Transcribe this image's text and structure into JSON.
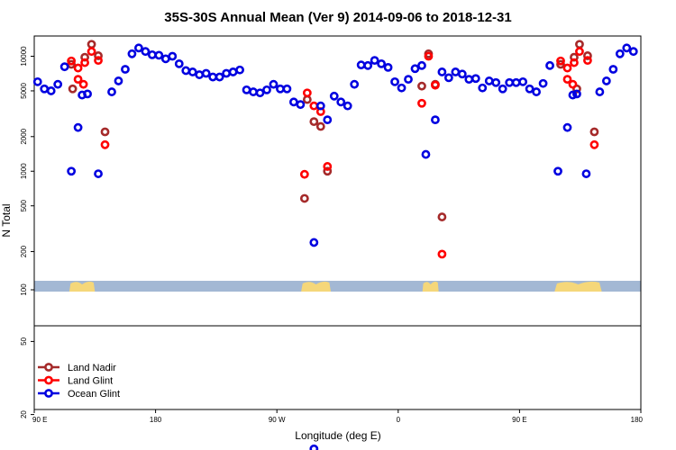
{
  "chart_data": {
    "type": "scatter",
    "title": "35S-30S Annual Mean (Ver 9)   2014-09-06 to 2018-12-31",
    "xlabel": "Longitude (deg E)",
    "ylabel": "N Total",
    "x_ticks": [
      {
        "value": 90,
        "label": "90 E"
      },
      {
        "value": 180,
        "label": "180"
      },
      {
        "value": 270,
        "label": "90 W"
      },
      {
        "value": 360,
        "label": "0"
      },
      {
        "value": 450,
        "label": "90 E"
      },
      {
        "value": 540,
        "label": "180"
      }
    ],
    "xlim": [
      90,
      540
    ],
    "y_scale": "log",
    "upper_panel": {
      "ylim": [
        100,
        15000
      ],
      "y_ticks": [
        {
          "value": 200,
          "label": "200"
        },
        {
          "value": 500,
          "label": "500"
        },
        {
          "value": 1000,
          "label": "1000"
        },
        {
          "value": 2000,
          "label": "2000"
        },
        {
          "value": 5000,
          "label": "5000"
        },
        {
          "value": 10000,
          "label": "10000"
        }
      ]
    },
    "lower_panel": {
      "ylim": [
        10,
        100
      ],
      "y_ticks": [
        {
          "value": 20,
          "label": "20"
        },
        {
          "value": 50,
          "label": "50"
        },
        {
          "value": 100,
          "label": "100"
        }
      ]
    },
    "map_strip": {
      "ocean_color": "#a3b8d4",
      "land_color": "#f5d77a",
      "land_ranges": [
        [
          116,
          135
        ],
        [
          288,
          310
        ],
        [
          378,
          390
        ],
        [
          476,
          511
        ]
      ]
    },
    "legend_position": "bottom-left",
    "series": [
      {
        "name": "Land Nadir",
        "color": "#a52a2a",
        "points": [
          [
            117.5,
            8500
          ],
          [
            127.5,
            9800
          ],
          [
            132.5,
            12700
          ],
          [
            137.5,
            10100
          ],
          [
            142.5,
            2200
          ],
          [
            292.5,
            4200
          ],
          [
            297.5,
            2700
          ],
          [
            302.5,
            2450
          ],
          [
            307.5,
            1000
          ],
          [
            377.5,
            5500
          ],
          [
            382.5,
            10500
          ],
          [
            387.5,
            5700
          ],
          [
            392.5,
            400
          ],
          [
            480.5,
            8500
          ],
          [
            490.5,
            9800
          ],
          [
            494.5,
            12700
          ],
          [
            500.5,
            10100
          ],
          [
            505.5,
            2200
          ],
          [
            118.5,
            5200
          ],
          [
            290.5,
            580
          ],
          [
            492.5,
            5200
          ]
        ]
      },
      {
        "name": "Land Glint",
        "color": "#ff0000",
        "points": [
          [
            117.5,
            9100
          ],
          [
            122.5,
            7900
          ],
          [
            127.5,
            8800
          ],
          [
            132.5,
            11000
          ],
          [
            137.5,
            9200
          ],
          [
            142.5,
            1700
          ],
          [
            122.5,
            6300
          ],
          [
            126.5,
            5700
          ],
          [
            292.5,
            4800
          ],
          [
            297.5,
            3700
          ],
          [
            302.5,
            3300
          ],
          [
            307.5,
            1100
          ],
          [
            290.5,
            940
          ],
          [
            377.5,
            3900
          ],
          [
            382.5,
            10000
          ],
          [
            387.5,
            5600
          ],
          [
            392.5,
            190
          ],
          [
            480.5,
            9100
          ],
          [
            485.5,
            7900
          ],
          [
            490.5,
            8800
          ],
          [
            494.5,
            11000
          ],
          [
            500.5,
            9200
          ],
          [
            505.5,
            1700
          ],
          [
            485.5,
            6300
          ],
          [
            489.5,
            5700
          ]
        ]
      },
      {
        "name": "Ocean Glint",
        "color": "#0000e0",
        "points": [
          [
            92.5,
            6000
          ],
          [
            97.5,
            5200
          ],
          [
            102.5,
            5000
          ],
          [
            107.5,
            5700
          ],
          [
            112.5,
            8100
          ],
          [
            117.5,
            1000
          ],
          [
            122.5,
            2400
          ],
          [
            125.5,
            4600
          ],
          [
            129.5,
            4700
          ],
          [
            137.5,
            950
          ],
          [
            147.5,
            4900
          ],
          [
            152.5,
            6100
          ],
          [
            157.5,
            7700
          ],
          [
            162.5,
            10500
          ],
          [
            167.5,
            11800
          ],
          [
            172.5,
            11000
          ],
          [
            177.5,
            10300
          ],
          [
            182.5,
            10200
          ],
          [
            187.5,
            9500
          ],
          [
            192.5,
            10000
          ],
          [
            197.5,
            8600
          ],
          [
            202.5,
            7500
          ],
          [
            207.5,
            7300
          ],
          [
            212.5,
            6900
          ],
          [
            217.5,
            7100
          ],
          [
            222.5,
            6600
          ],
          [
            227.5,
            6600
          ],
          [
            232.5,
            7100
          ],
          [
            237.5,
            7300
          ],
          [
            242.5,
            7600
          ],
          [
            247.5,
            5100
          ],
          [
            252.5,
            4900
          ],
          [
            257.5,
            4800
          ],
          [
            262.5,
            5100
          ],
          [
            267.5,
            5700
          ],
          [
            272.5,
            5200
          ],
          [
            277.5,
            5200
          ],
          [
            282.5,
            4000
          ],
          [
            287.5,
            3800
          ],
          [
            297.5,
            240
          ],
          [
            302.5,
            3700
          ],
          [
            307.5,
            2800
          ],
          [
            312.5,
            4500
          ],
          [
            317.5,
            4000
          ],
          [
            322.5,
            3700
          ],
          [
            327.5,
            5700
          ],
          [
            332.5,
            8400
          ],
          [
            337.5,
            8300
          ],
          [
            342.5,
            9200
          ],
          [
            347.5,
            8600
          ],
          [
            352.5,
            8000
          ],
          [
            357.5,
            6000
          ],
          [
            362.5,
            5300
          ],
          [
            367.5,
            6300
          ],
          [
            372.5,
            7800
          ],
          [
            377.5,
            8300
          ],
          [
            380.5,
            1400
          ],
          [
            387.5,
            2800
          ],
          [
            392.5,
            7300
          ],
          [
            397.5,
            6500
          ],
          [
            402.5,
            7300
          ],
          [
            407.5,
            7000
          ],
          [
            412.5,
            6300
          ],
          [
            417.5,
            6400
          ],
          [
            422.5,
            5300
          ],
          [
            427.5,
            6100
          ],
          [
            432.5,
            5900
          ],
          [
            437.5,
            5200
          ],
          [
            442.5,
            5900
          ],
          [
            447.5,
            5900
          ],
          [
            452.5,
            6000
          ],
          [
            457.5,
            5200
          ],
          [
            462.5,
            4900
          ],
          [
            467.5,
            5800
          ],
          [
            472.5,
            8300
          ],
          [
            478.5,
            1000
          ],
          [
            485.5,
            2400
          ],
          [
            489.5,
            4600
          ],
          [
            492.5,
            4700
          ],
          [
            499.5,
            950
          ],
          [
            509.5,
            4900
          ],
          [
            514.5,
            6100
          ],
          [
            519.5,
            7700
          ],
          [
            524.5,
            10500
          ],
          [
            529.5,
            11800
          ],
          [
            534.5,
            11000
          ]
        ]
      }
    ],
    "lower_series": [
      {
        "name": "Ocean Glint",
        "points": [
          [
            297.5,
            13
          ]
        ]
      }
    ]
  }
}
